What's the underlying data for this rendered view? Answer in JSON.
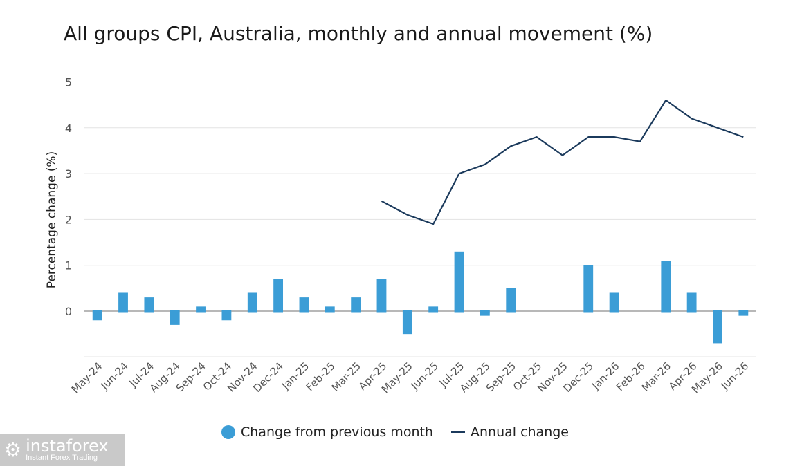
{
  "chart_data": {
    "type": "bar",
    "title": "All groups CPI, Australia, monthly and annual movement (%)",
    "ylabel": "Percentage change (%)",
    "xlabel": "",
    "ylim": [
      -1,
      5
    ],
    "yticks": [
      0,
      1,
      2,
      3,
      4,
      5
    ],
    "grid": true,
    "legend_position": "bottom",
    "categories": [
      "May-24",
      "Jun-24",
      "Jul-24",
      "Aug-24",
      "Sep-24",
      "Oct-24",
      "Nov-24",
      "Dec-24",
      "Jan-25",
      "Feb-25",
      "Mar-25",
      "Apr-25",
      "May-25",
      "Jun-25",
      "Jul-25",
      "Aug-25",
      "Sep-25",
      "Oct-25",
      "Nov-25",
      "Dec-25",
      "Jan-26",
      "Feb-26",
      "Mar-26",
      "Apr-26",
      "May-26",
      "Jun-26"
    ],
    "series": [
      {
        "name": "Change from previous month",
        "type": "bar",
        "color": "#3b9dd6",
        "values": [
          -0.2,
          0.4,
          0.3,
          -0.3,
          0.1,
          -0.2,
          0.4,
          0.7,
          0.3,
          0.1,
          0.3,
          0.7,
          -0.5,
          0.1,
          1.3,
          -0.1,
          0.5,
          0.0,
          0.0,
          1.0,
          0.4,
          0.0,
          1.1,
          0.4,
          -0.7,
          -0.1
        ]
      },
      {
        "name": "Annual change",
        "type": "line",
        "color": "#1b3a5c",
        "values": [
          null,
          null,
          null,
          null,
          null,
          null,
          null,
          null,
          null,
          null,
          null,
          2.4,
          2.1,
          1.9,
          3.0,
          3.2,
          3.6,
          3.8,
          3.4,
          3.8,
          3.8,
          3.7,
          4.6,
          4.2,
          4.0,
          3.8
        ]
      }
    ]
  },
  "legend": {
    "bar_label": "Change from previous month",
    "line_label": "Annual change"
  },
  "watermark": {
    "brand": "instaforex",
    "tagline": "Instant Forex Trading"
  }
}
